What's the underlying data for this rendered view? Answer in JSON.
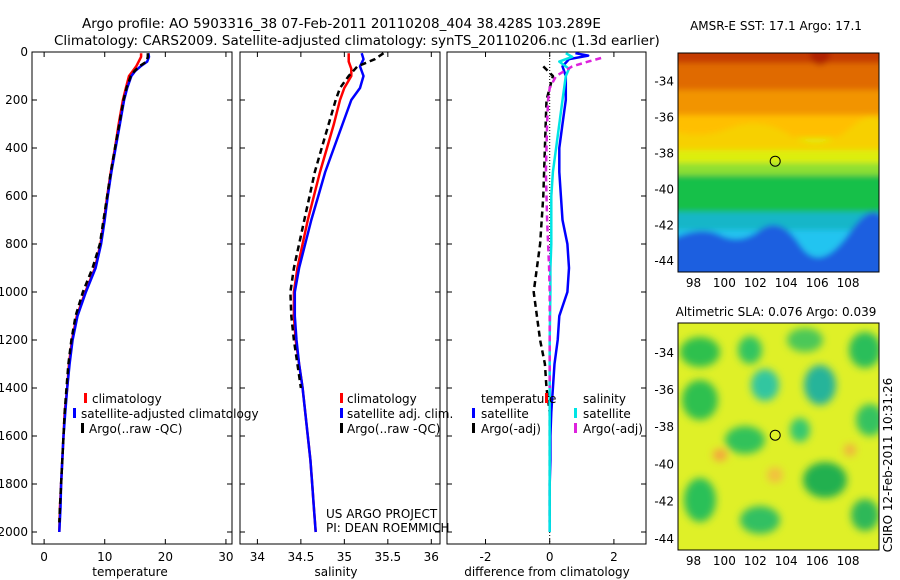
{
  "header": {
    "line1": "Argo profile: AO 5903316_38 07-Feb-2011 20110208_404 38.428S 103.289E",
    "line2": "Climatology: CARS2009. Satellite-adjusted climatology: synTS_20110206.nc (1.3d earlier)"
  },
  "colors": {
    "red": "#ff0000",
    "blue": "#0000ff",
    "black": "#000000",
    "cyan": "#00e5e5",
    "magenta": "#dd22dd"
  },
  "side_text": "CSIRO 12-Feb-2011 10:31:26",
  "credit": {
    "line1": "US ARGO PROJECT",
    "line2": "PI: DEAN ROEMMICH"
  },
  "chart_data": [
    {
      "type": "line",
      "name": "temperature-profile",
      "xlabel": "temperature",
      "xlim": [
        -2,
        31
      ],
      "ylim": [
        0,
        2050
      ],
      "x_ticks": [
        0,
        10,
        20,
        30
      ],
      "y_ticks": [
        0,
        200,
        400,
        600,
        800,
        1000,
        1200,
        1400,
        1600,
        1800,
        2000
      ],
      "legend": [
        "climatology",
        "satellite-adjusted climatology",
        "Argo(..raw -QC)"
      ],
      "series": [
        {
          "name": "climatology",
          "color": "red",
          "dash": "",
          "points": [
            [
              16.0,
              5
            ],
            [
              16.0,
              20
            ],
            [
              15.6,
              40
            ],
            [
              15.2,
              60
            ],
            [
              14.6,
              80
            ],
            [
              14.0,
              100
            ],
            [
              13.5,
              150
            ],
            [
              13.0,
              200
            ],
            [
              12.3,
              300
            ],
            [
              11.7,
              400
            ],
            [
              11.0,
              500
            ],
            [
              10.4,
              600
            ],
            [
              9.9,
              700
            ],
            [
              9.3,
              800
            ],
            [
              8.4,
              900
            ],
            [
              6.8,
              1000
            ],
            [
              5.4,
              1100
            ],
            [
              4.6,
              1200
            ],
            [
              4.1,
              1300
            ],
            [
              3.8,
              1400
            ],
            [
              3.4,
              1500
            ],
            [
              3.2,
              1600
            ],
            [
              3.0,
              1700
            ],
            [
              2.8,
              1800
            ],
            [
              2.6,
              1900
            ],
            [
              2.5,
              2000
            ]
          ]
        },
        {
          "name": "satellite-adjusted climatology",
          "color": "blue",
          "dash": "",
          "points": [
            [
              17.2,
              5
            ],
            [
              17.3,
              20
            ],
            [
              17.0,
              40
            ],
            [
              15.9,
              60
            ],
            [
              15.0,
              80
            ],
            [
              14.4,
              100
            ],
            [
              13.7,
              150
            ],
            [
              13.2,
              200
            ],
            [
              12.5,
              300
            ],
            [
              11.8,
              400
            ],
            [
              11.1,
              500
            ],
            [
              10.5,
              600
            ],
            [
              10.0,
              700
            ],
            [
              9.4,
              800
            ],
            [
              8.5,
              900
            ],
            [
              6.9,
              1000
            ],
            [
              5.5,
              1100
            ],
            [
              4.7,
              1200
            ],
            [
              4.2,
              1300
            ],
            [
              3.8,
              1400
            ],
            [
              3.5,
              1500
            ],
            [
              3.2,
              1600
            ],
            [
              3.0,
              1700
            ],
            [
              2.8,
              1800
            ],
            [
              2.7,
              1900
            ],
            [
              2.5,
              2000
            ]
          ]
        },
        {
          "name": "Argo(..raw -QC)",
          "color": "black",
          "dash": "6 4",
          "points": [
            [
              17.1,
              5
            ],
            [
              17.1,
              20
            ],
            [
              16.9,
              40
            ],
            [
              15.7,
              60
            ],
            [
              14.9,
              80
            ],
            [
              14.3,
              100
            ],
            [
              13.6,
              150
            ],
            [
              13.1,
              200
            ],
            [
              12.4,
              300
            ],
            [
              11.7,
              400
            ],
            [
              11.0,
              500
            ],
            [
              10.4,
              600
            ],
            [
              9.8,
              700
            ],
            [
              9.2,
              800
            ],
            [
              8.0,
              900
            ],
            [
              6.4,
              1000
            ],
            [
              5.2,
              1100
            ],
            [
              4.5,
              1200
            ],
            [
              4.0,
              1300
            ],
            [
              3.7,
              1400
            ],
            [
              3.4,
              1500
            ],
            [
              3.2,
              1600
            ],
            [
              3.0,
              1700
            ],
            [
              2.8,
              1800
            ],
            [
              2.6,
              1900
            ],
            [
              2.5,
              1960
            ]
          ]
        }
      ]
    },
    {
      "type": "line",
      "name": "salinity-profile",
      "xlabel": "salinity",
      "xlim": [
        33.8,
        36.1
      ],
      "ylim": [
        0,
        2050
      ],
      "x_ticks": [
        34,
        34.5,
        35,
        35.5,
        36
      ],
      "legend": [
        "climatology",
        "satellite adj. clim.",
        "Argo(..raw -QC)"
      ],
      "series": [
        {
          "name": "climatology",
          "color": "red",
          "dash": "",
          "points": [
            [
              35.05,
              5
            ],
            [
              35.05,
              40
            ],
            [
              35.08,
              70
            ],
            [
              35.08,
              100
            ],
            [
              35.0,
              150
            ],
            [
              34.95,
              200
            ],
            [
              34.88,
              300
            ],
            [
              34.8,
              400
            ],
            [
              34.72,
              500
            ],
            [
              34.65,
              600
            ],
            [
              34.58,
              700
            ],
            [
              34.52,
              800
            ],
            [
              34.46,
              900
            ],
            [
              34.42,
              1000
            ],
            [
              34.42,
              1100
            ],
            [
              34.44,
              1200
            ],
            [
              34.48,
              1300
            ],
            [
              34.52,
              1400
            ],
            [
              34.55,
              1500
            ],
            [
              34.58,
              1600
            ],
            [
              34.61,
              1700
            ],
            [
              34.63,
              1800
            ],
            [
              34.65,
              1900
            ],
            [
              34.67,
              2000
            ]
          ]
        },
        {
          "name": "satellite adj. clim.",
          "color": "blue",
          "dash": "",
          "points": [
            [
              35.2,
              5
            ],
            [
              35.22,
              30
            ],
            [
              35.18,
              60
            ],
            [
              35.22,
              100
            ],
            [
              35.18,
              150
            ],
            [
              35.08,
              200
            ],
            [
              34.98,
              300
            ],
            [
              34.88,
              400
            ],
            [
              34.78,
              500
            ],
            [
              34.7,
              600
            ],
            [
              34.62,
              700
            ],
            [
              34.55,
              800
            ],
            [
              34.48,
              900
            ],
            [
              34.43,
              1000
            ],
            [
              34.43,
              1100
            ],
            [
              34.45,
              1200
            ],
            [
              34.48,
              1300
            ],
            [
              34.52,
              1400
            ],
            [
              34.55,
              1500
            ],
            [
              34.58,
              1600
            ],
            [
              34.61,
              1700
            ],
            [
              34.63,
              1800
            ],
            [
              34.65,
              1900
            ],
            [
              34.67,
              2000
            ]
          ]
        },
        {
          "name": "Argo(..raw -QC)",
          "color": "black",
          "dash": "6 4",
          "points": [
            [
              35.45,
              5
            ],
            [
              35.35,
              30
            ],
            [
              35.15,
              60
            ],
            [
              35.05,
              100
            ],
            [
              34.95,
              150
            ],
            [
              34.9,
              200
            ],
            [
              34.82,
              300
            ],
            [
              34.74,
              400
            ],
            [
              34.66,
              500
            ],
            [
              34.6,
              600
            ],
            [
              34.54,
              700
            ],
            [
              34.48,
              800
            ],
            [
              34.42,
              900
            ],
            [
              34.38,
              1000
            ],
            [
              34.39,
              1100
            ],
            [
              34.42,
              1200
            ],
            [
              34.46,
              1300
            ],
            [
              34.5,
              1400
            ]
          ]
        }
      ]
    },
    {
      "type": "line",
      "name": "difference-profile",
      "xlabel": "difference from climatology",
      "xlim": [
        -3.2,
        3.0
      ],
      "ylim": [
        0,
        2050
      ],
      "x_ticks": [
        -2,
        0,
        2
      ],
      "legend_titles": [
        "temperature",
        "salinity"
      ],
      "legend": [
        "satellite",
        "Argo(-adj)",
        "satellite",
        "Argo(-adj)"
      ],
      "series": [
        {
          "name": "temperature satellite",
          "color": "blue",
          "dash": "",
          "points": [
            [
              0.8,
              5
            ],
            [
              1.2,
              15
            ],
            [
              0.6,
              30
            ],
            [
              0.4,
              60
            ],
            [
              0.5,
              100
            ],
            [
              0.5,
              200
            ],
            [
              0.4,
              300
            ],
            [
              0.3,
              400
            ],
            [
              0.3,
              500
            ],
            [
              0.35,
              600
            ],
            [
              0.4,
              700
            ],
            [
              0.55,
              800
            ],
            [
              0.6,
              900
            ],
            [
              0.55,
              1000
            ],
            [
              0.3,
              1100
            ],
            [
              0.25,
              1200
            ],
            [
              0.15,
              1300
            ],
            [
              0.1,
              1400
            ],
            [
              0.05,
              1500
            ],
            [
              0.02,
              1600
            ],
            [
              0.02,
              1700
            ],
            [
              0.0,
              1800
            ],
            [
              0.0,
              1900
            ],
            [
              0.0,
              2000
            ]
          ]
        },
        {
          "name": "temperature Argo(-adj)",
          "color": "black",
          "dash": "6 4",
          "points": [
            [
              -0.2,
              60
            ],
            [
              0.1,
              100
            ],
            [
              -0.1,
              200
            ],
            [
              -0.15,
              400
            ],
            [
              -0.2,
              600
            ],
            [
              -0.3,
              800
            ],
            [
              -0.4,
              900
            ],
            [
              -0.5,
              1000
            ],
            [
              -0.4,
              1100
            ],
            [
              -0.3,
              1200
            ],
            [
              -0.15,
              1300
            ],
            [
              -0.1,
              1400
            ],
            [
              0.0,
              1500
            ],
            [
              0.0,
              1600
            ],
            [
              0.0,
              1800
            ],
            [
              0.0,
              1960
            ]
          ]
        },
        {
          "name": "salinity satellite",
          "color": "cyan",
          "dash": "",
          "points": [
            [
              0.5,
              5
            ],
            [
              0.7,
              20
            ],
            [
              0.3,
              40
            ],
            [
              0.6,
              70
            ],
            [
              0.5,
              100
            ],
            [
              0.4,
              200
            ],
            [
              0.3,
              300
            ],
            [
              0.2,
              400
            ],
            [
              0.1,
              500
            ],
            [
              0.05,
              600
            ],
            [
              0.05,
              700
            ],
            [
              0.05,
              800
            ],
            [
              0.02,
              900
            ],
            [
              0.02,
              1000
            ],
            [
              0.0,
              1200
            ],
            [
              0.0,
              1500
            ],
            [
              0.0,
              2000
            ]
          ]
        },
        {
          "name": "salinity Argo(-adj)",
          "color": "magenta",
          "dash": "6 4",
          "points": [
            [
              1.6,
              25
            ],
            [
              1.2,
              40
            ],
            [
              0.7,
              60
            ],
            [
              0.2,
              100
            ],
            [
              0.0,
              150
            ],
            [
              -0.05,
              200
            ],
            [
              -0.08,
              300
            ],
            [
              -0.1,
              400
            ],
            [
              -0.12,
              500
            ],
            [
              -0.1,
              600
            ],
            [
              -0.08,
              700
            ],
            [
              -0.05,
              800
            ],
            [
              -0.02,
              900
            ],
            [
              0.0,
              1000
            ],
            [
              0.0,
              1200
            ],
            [
              0.0,
              1400
            ]
          ]
        }
      ]
    },
    {
      "type": "heatmap",
      "name": "sst-map",
      "title": "AMSR-E SST: 17.1 Argo: 17.1",
      "xlim": [
        97,
        110
      ],
      "ylim": [
        -44.6,
        -32.4
      ],
      "x_ticks": [
        98,
        100,
        102,
        104,
        106,
        108
      ],
      "y_ticks": [
        -34,
        -36,
        -38,
        -40,
        -42,
        -44
      ],
      "marker": [
        103.289,
        -38.428
      ]
    },
    {
      "type": "heatmap",
      "name": "sla-map",
      "title": "Altimetric SLA: 0.076 Argo: 0.039",
      "xlim": [
        97,
        110
      ],
      "ylim": [
        -44.6,
        -32.4
      ],
      "x_ticks": [
        98,
        100,
        102,
        104,
        106,
        108
      ],
      "y_ticks": [
        -34,
        -36,
        -38,
        -40,
        -42,
        -44
      ],
      "marker": [
        103.289,
        -38.428
      ]
    }
  ]
}
